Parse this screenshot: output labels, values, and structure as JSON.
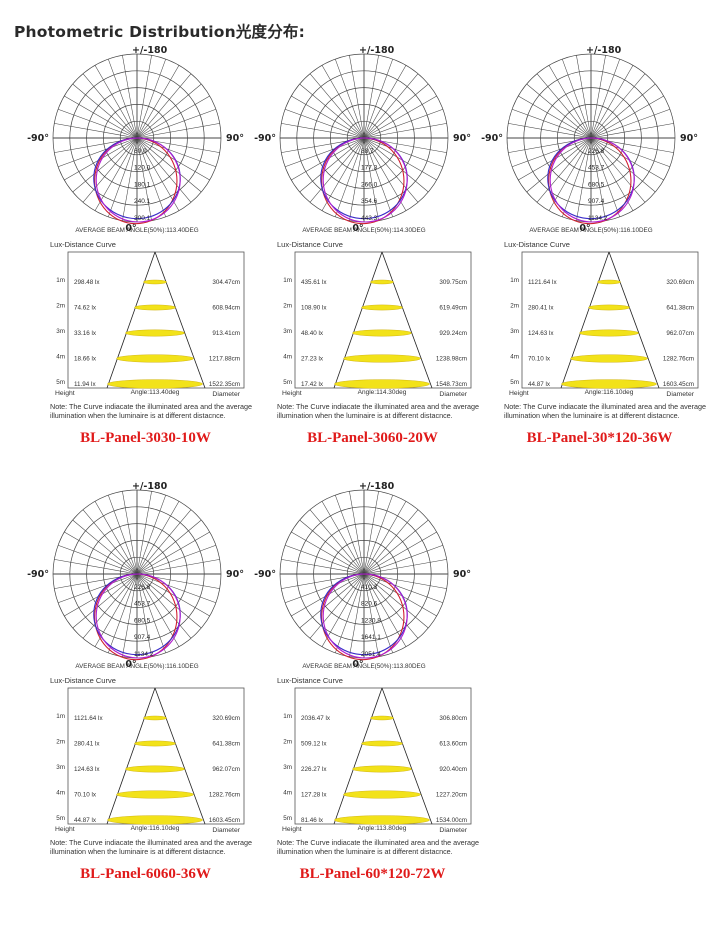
{
  "title": "Photometric Distribution光度分布:",
  "labels": {
    "top": "+/-180",
    "bottom": "0°",
    "left": "-90°",
    "right": "90°",
    "lux_title": "Lux-Distance Curve",
    "height": "Height",
    "diameter": "Diameter",
    "note": "Note: The Curve indiacate the illuminated area and the average illumination when the luminaire is at different distacnce.",
    "heights": [
      "1m",
      "2m",
      "3m",
      "4m",
      "5m"
    ]
  },
  "colors": {
    "curve_a": "#d02030",
    "curve_b": "#3a2cc8",
    "curve_c": "#b01ed0",
    "ellipse": "#f2e21a",
    "product": "#e01a1a"
  },
  "panels": [
    {
      "product": "BL-Panel-3030-10W",
      "beam_angle_text": "AVERAGE BEAM ANGLE(50%):113.40DEG",
      "angle_text": "Angle:113.40deg",
      "polar_scale": [
        "60.0",
        "120.0",
        "180.1",
        "240.1",
        "300.1"
      ],
      "lux": [
        "298.48 lx",
        "74.62 lx",
        "33.16 lx",
        "18.66 lx",
        "11.94 lx"
      ],
      "diameters": [
        "304.47cm",
        "608.94cm",
        "913.41cm",
        "1217.88cm",
        "1522.35cm"
      ]
    },
    {
      "product": "BL-Panel-3060-20W",
      "beam_angle_text": "AVERAGE BEAM ANGLE(50%):114.30DEG",
      "angle_text": "Angle:114.30deg",
      "polar_scale": [
        "88.7",
        "177.3",
        "266.0",
        "354.6",
        "443.3"
      ],
      "lux": [
        "435.61 lx",
        "108.90 lx",
        "48.40 lx",
        "27.23 lx",
        "17.42 lx"
      ],
      "diameters": [
        "309.75cm",
        "619.49cm",
        "929.24cm",
        "1238.98cm",
        "1548.73cm"
      ]
    },
    {
      "product": "BL-Panel-30*120-36W",
      "beam_angle_text": "AVERAGE BEAM ANGLE(50%):116.10DEG",
      "angle_text": "Angle:116.10deg",
      "polar_scale": [
        "226.8",
        "453.7",
        "680.5",
        "907.4",
        "1134.2"
      ],
      "lux": [
        "1121.64 lx",
        "280.41 lx",
        "124.63 lx",
        "70.10 lx",
        "44.87 lx"
      ],
      "diameters": [
        "320.69cm",
        "641.38cm",
        "962.07cm",
        "1282.76cm",
        "1603.45cm"
      ]
    },
    {
      "product": "BL-Panel-6060-36W",
      "beam_angle_text": "AVERAGE BEAM ANGLE(50%):116.10DEG",
      "angle_text": "Angle:116.10deg",
      "polar_scale": [
        "226.8",
        "453.7",
        "680.5",
        "907.4",
        "1134.2"
      ],
      "lux": [
        "1121.64 lx",
        "280.41 lx",
        "124.63 lx",
        "70.10 lx",
        "44.87 lx"
      ],
      "diameters": [
        "320.69cm",
        "641.38cm",
        "962.07cm",
        "1282.76cm",
        "1603.45cm"
      ]
    },
    {
      "product": "BL-Panel-60*120-72W",
      "beam_angle_text": "AVERAGE BEAM ANGLE(50%):113.80DEG",
      "angle_text": "Angle:113.80deg",
      "polar_scale": [
        "410.3",
        "820.6",
        "1230.8",
        "1641.1",
        "2051.4"
      ],
      "lux": [
        "2036.47 lx",
        "509.12 lx",
        "226.27 lx",
        "127.28 lx",
        "81.46 lx"
      ],
      "diameters": [
        "306.80cm",
        "613.60cm",
        "920.40cm",
        "1227.20cm",
        "1534.00cm"
      ]
    }
  ]
}
